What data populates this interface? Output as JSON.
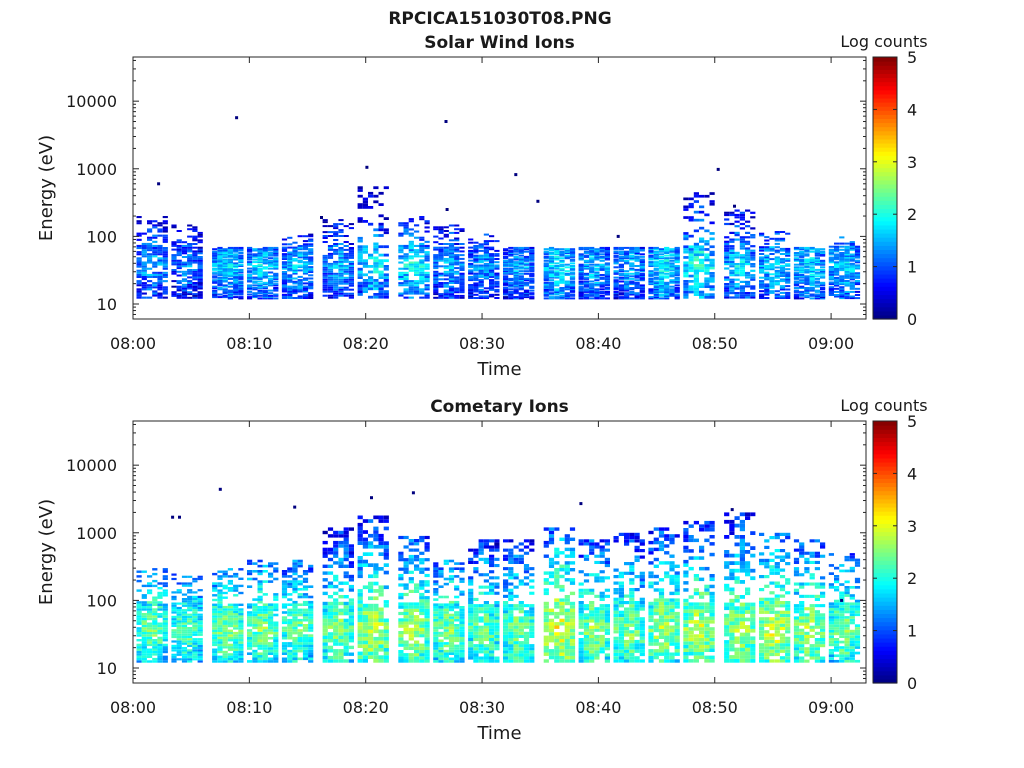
{
  "figure_title": "RPCICA151030T08.PNG",
  "colors": {
    "jet": [
      "#00007f",
      "#0000ff",
      "#007fff",
      "#00ffff",
      "#7fff7f",
      "#ffff00",
      "#ff7f00",
      "#ff0000",
      "#7f0000"
    ],
    "axis": "#262626"
  },
  "chart_data": [
    {
      "type": "heatmap",
      "title": "Solar Wind Ions",
      "xlabel": "Time",
      "ylabel": "Energy (eV)",
      "xlim": [
        "08:00",
        "09:03"
      ],
      "ylim": [
        6,
        45000
      ],
      "yscale": "log",
      "xticks": [
        "08:00",
        "08:10",
        "08:20",
        "08:30",
        "08:40",
        "08:50",
        "09:00"
      ],
      "yticks": [
        "10",
        "100",
        "1000",
        "10000"
      ],
      "colorbar": {
        "label": "Log counts",
        "min": 0,
        "max": 5,
        "ticks": [
          "0",
          "1",
          "2",
          "3",
          "4",
          "5"
        ]
      },
      "scan_start_minutes": [
        0.3,
        3.3,
        6.8,
        9.8,
        12.8,
        16.3,
        19.3,
        22.8,
        25.8,
        28.8,
        31.8,
        35.3,
        38.3,
        41.3,
        44.3,
        47.3,
        50.8,
        53.8,
        56.8,
        59.8
      ],
      "scan_peak_log_counts": [
        1.6,
        1.4,
        1.8,
        1.8,
        1.7,
        1.6,
        1.9,
        2.0,
        1.6,
        1.5,
        1.6,
        1.9,
        1.7,
        1.6,
        1.9,
        2.1,
        1.8,
        1.8,
        1.8,
        1.8
      ],
      "scan_max_energy_ev": [
        200,
        150,
        70,
        70,
        110,
        180,
        550,
        200,
        150,
        110,
        70,
        70,
        70,
        70,
        70,
        450,
        250,
        120,
        70,
        100
      ],
      "sparse_points": [
        {
          "time_min": 2.2,
          "energy_ev": 600
        },
        {
          "time_min": 8.9,
          "energy_ev": 5700
        },
        {
          "time_min": 16.2,
          "energy_ev": 190
        },
        {
          "time_min": 20.1,
          "energy_ev": 1050
        },
        {
          "time_min": 26.9,
          "energy_ev": 5000
        },
        {
          "time_min": 27.0,
          "energy_ev": 250
        },
        {
          "time_min": 32.9,
          "energy_ev": 820
        },
        {
          "time_min": 34.8,
          "energy_ev": 330
        },
        {
          "time_min": 41.7,
          "energy_ev": 100
        },
        {
          "time_min": 50.3,
          "energy_ev": 980
        },
        {
          "time_min": 51.7,
          "energy_ev": 280
        }
      ]
    },
    {
      "type": "heatmap",
      "title": "Cometary Ions",
      "xlabel": "Time",
      "ylabel": "Energy (eV)",
      "xlim": [
        "08:00",
        "09:03"
      ],
      "ylim": [
        6,
        45000
      ],
      "yscale": "log",
      "xticks": [
        "08:00",
        "08:10",
        "08:20",
        "08:30",
        "08:40",
        "08:50",
        "09:00"
      ],
      "yticks": [
        "10",
        "100",
        "1000",
        "10000"
      ],
      "colorbar": {
        "label": "Log counts",
        "min": 0,
        "max": 5,
        "ticks": [
          "0",
          "1",
          "2",
          "3",
          "4",
          "5"
        ]
      },
      "scan_start_minutes": [
        0.3,
        3.3,
        6.8,
        9.8,
        12.8,
        16.3,
        19.3,
        22.8,
        25.8,
        28.8,
        31.8,
        35.3,
        38.3,
        41.3,
        44.3,
        47.3,
        50.8,
        53.8,
        56.8,
        59.8
      ],
      "scan_peak_log_counts": [
        2.5,
        2.4,
        2.6,
        2.6,
        2.5,
        2.6,
        2.9,
        2.8,
        2.6,
        2.5,
        2.6,
        3.1,
        2.7,
        2.6,
        2.8,
        2.9,
        2.8,
        3.0,
        2.8,
        2.6
      ],
      "scan_max_energy_ev": [
        300,
        250,
        300,
        400,
        400,
        1200,
        1800,
        900,
        400,
        800,
        800,
        1200,
        800,
        1000,
        1200,
        1500,
        2000,
        1000,
        800,
        500
      ],
      "sparse_points": [
        {
          "time_min": 3.4,
          "energy_ev": 1700
        },
        {
          "time_min": 4.0,
          "energy_ev": 1700
        },
        {
          "time_min": 7.5,
          "energy_ev": 4400
        },
        {
          "time_min": 13.9,
          "energy_ev": 2400
        },
        {
          "time_min": 20.5,
          "energy_ev": 3300
        },
        {
          "time_min": 24.1,
          "energy_ev": 3900
        },
        {
          "time_min": 38.5,
          "energy_ev": 2700
        },
        {
          "time_min": 51.5,
          "energy_ev": 2200
        },
        {
          "time_min": 60.9,
          "energy_ev": 100
        }
      ]
    }
  ]
}
